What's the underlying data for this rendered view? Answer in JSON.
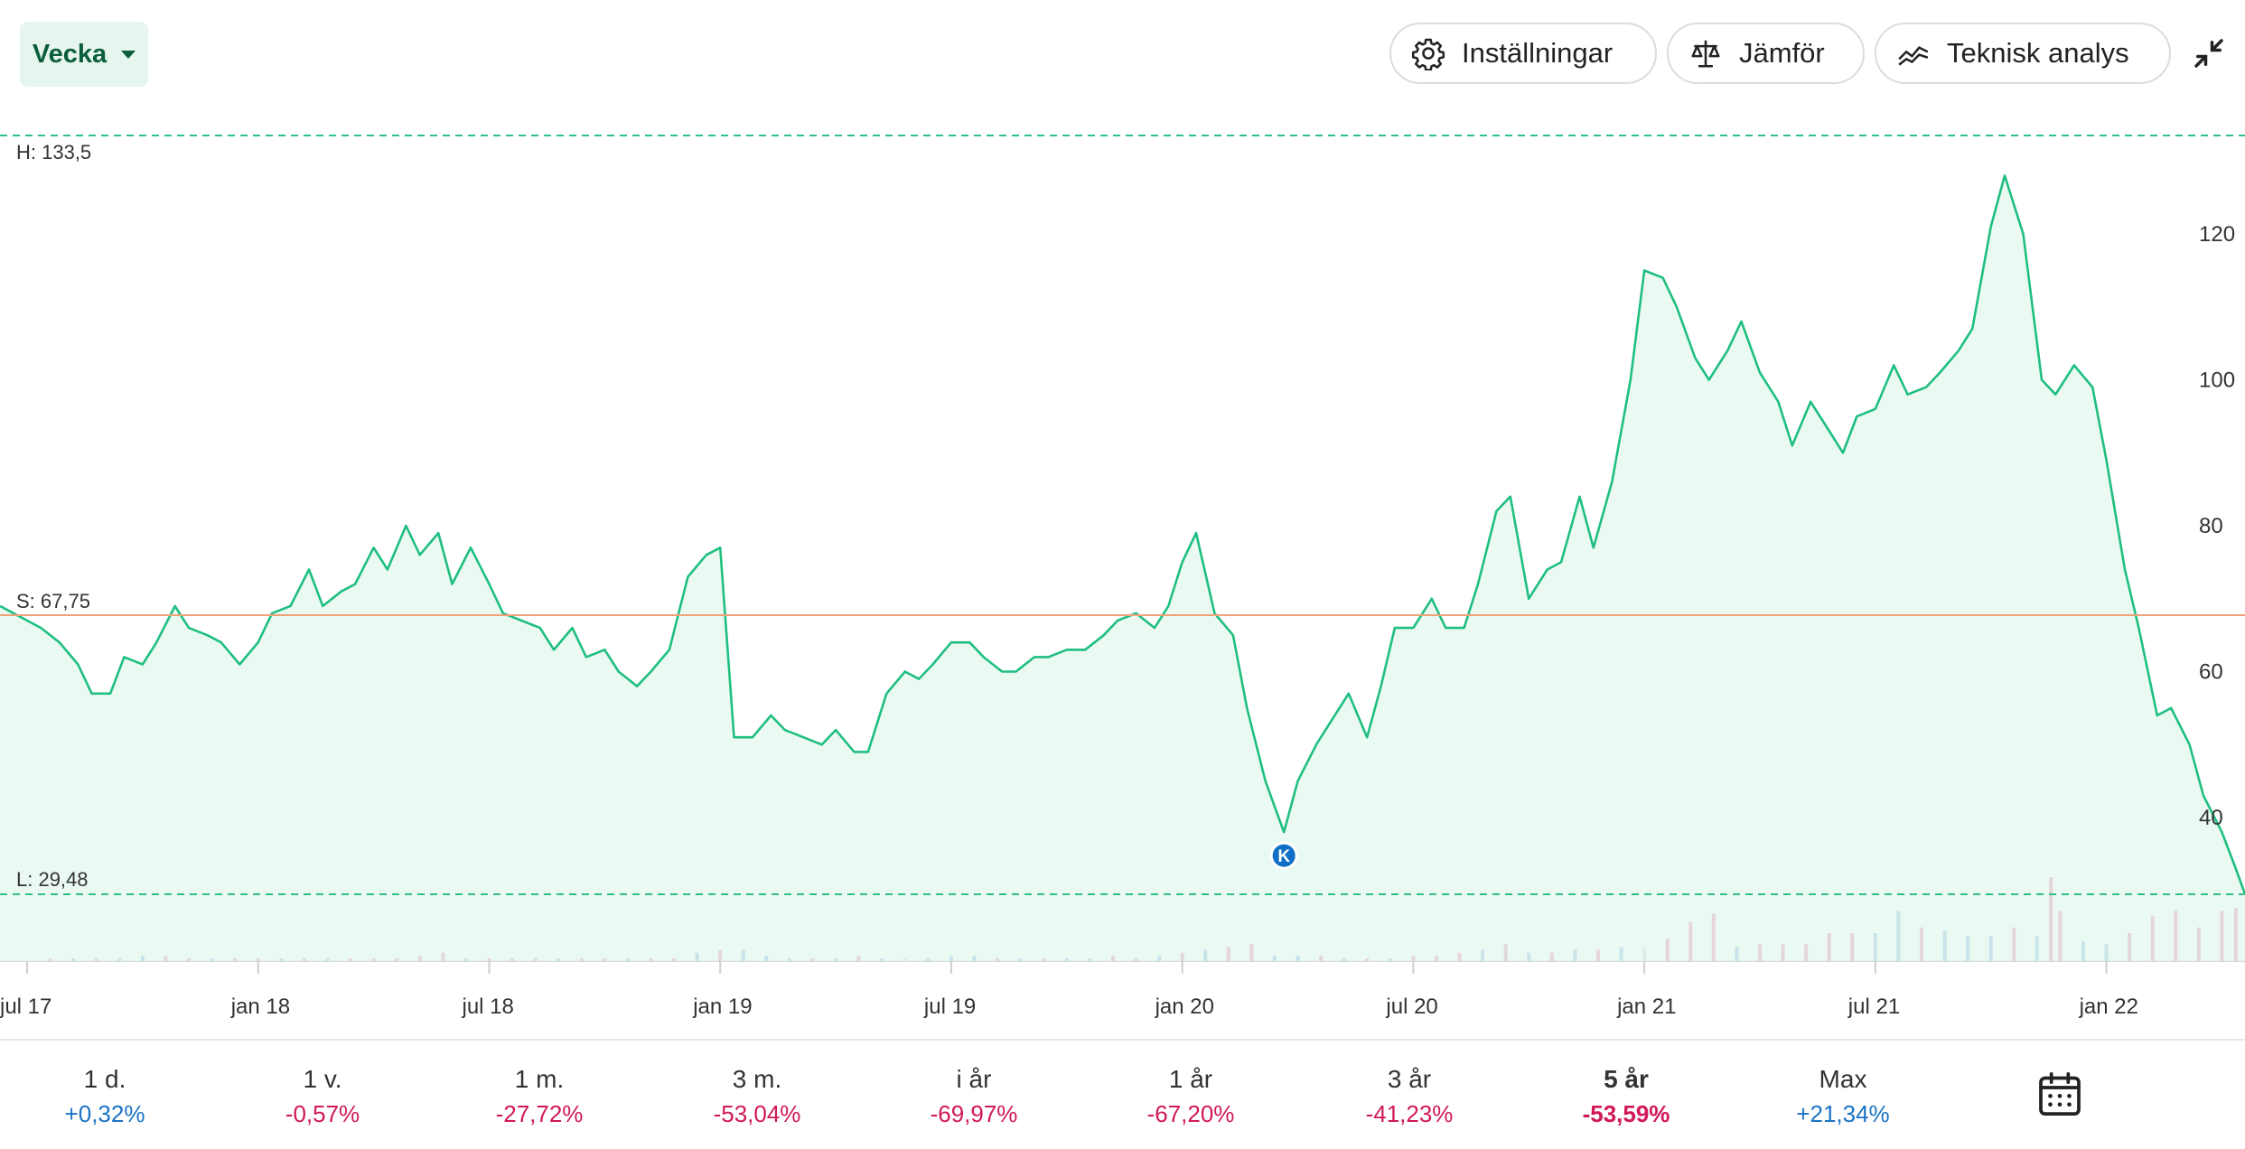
{
  "toolbar": {
    "period_label": "Vecka",
    "settings_label": "Inställningar",
    "compare_label": "Jämför",
    "technical_label": "Teknisk analys",
    "icons": [
      "chevron-down-icon",
      "gear-icon",
      "scale-icon",
      "trend-line-icon",
      "collapse-icon",
      "calendar-icon"
    ]
  },
  "chart_data": {
    "type": "line",
    "high_label": "H: 133,5",
    "start_label": "S: 67,75",
    "low_label": "L: 29,48",
    "high": 133.5,
    "start": 67.75,
    "low": 29.48,
    "ylim": [
      25,
      136
    ],
    "yticks": [
      "40",
      "60",
      "80",
      "100",
      "120"
    ],
    "ytick_values": [
      40,
      60,
      80,
      100,
      120
    ],
    "xlim": [
      2017.5,
      2022.3
    ],
    "xticks": [
      "jul 17",
      "jan 18",
      "jul 18",
      "jan 19",
      "jul 19",
      "jan 20",
      "jul 20",
      "jan 21",
      "jul 21",
      "jan 22"
    ],
    "xtick_values": [
      2017.5,
      2018.0,
      2018.5,
      2019.0,
      2019.5,
      2020.0,
      2020.5,
      2021.0,
      2021.5,
      2022.0
    ],
    "marker": {
      "label": "K",
      "x": 2020.22,
      "y": 38.0
    },
    "series": [
      {
        "points": [
          [
            2017.5,
            69
          ],
          [
            2017.53,
            66
          ],
          [
            2017.57,
            64
          ],
          [
            2017.61,
            61
          ],
          [
            2017.64,
            57
          ],
          [
            2017.68,
            57
          ],
          [
            2017.71,
            62
          ],
          [
            2017.75,
            61
          ],
          [
            2017.78,
            64
          ],
          [
            2017.82,
            69
          ],
          [
            2017.85,
            66
          ],
          [
            2017.89,
            65
          ],
          [
            2017.92,
            64
          ],
          [
            2017.96,
            61
          ],
          [
            2018.0,
            64
          ],
          [
            2018.03,
            68
          ],
          [
            2018.07,
            69
          ],
          [
            2018.11,
            74
          ],
          [
            2018.14,
            69
          ],
          [
            2018.18,
            71
          ],
          [
            2018.21,
            72
          ],
          [
            2018.25,
            77
          ],
          [
            2018.28,
            74
          ],
          [
            2018.32,
            80
          ],
          [
            2018.35,
            76
          ],
          [
            2018.39,
            79
          ],
          [
            2018.42,
            72
          ],
          [
            2018.46,
            77
          ],
          [
            2018.5,
            72
          ],
          [
            2018.53,
            68
          ],
          [
            2018.57,
            67
          ],
          [
            2018.61,
            66
          ],
          [
            2018.64,
            63
          ],
          [
            2018.68,
            66
          ],
          [
            2018.71,
            62
          ],
          [
            2018.75,
            63
          ],
          [
            2018.78,
            60
          ],
          [
            2018.82,
            58
          ],
          [
            2018.85,
            60
          ],
          [
            2018.89,
            63
          ],
          [
            2018.93,
            73
          ],
          [
            2018.97,
            76
          ],
          [
            2019.0,
            77
          ],
          [
            2019.03,
            51
          ],
          [
            2019.07,
            51
          ],
          [
            2019.11,
            54
          ],
          [
            2019.14,
            52
          ],
          [
            2019.18,
            51
          ],
          [
            2019.22,
            50
          ],
          [
            2019.25,
            52
          ],
          [
            2019.29,
            49
          ],
          [
            2019.32,
            49
          ],
          [
            2019.36,
            57
          ],
          [
            2019.4,
            60
          ],
          [
            2019.43,
            59
          ],
          [
            2019.46,
            61
          ],
          [
            2019.5,
            64
          ],
          [
            2019.54,
            64
          ],
          [
            2019.57,
            62
          ],
          [
            2019.61,
            60
          ],
          [
            2019.64,
            60
          ],
          [
            2019.68,
            62
          ],
          [
            2019.71,
            62
          ],
          [
            2019.75,
            63
          ],
          [
            2019.79,
            63
          ],
          [
            2019.83,
            65
          ],
          [
            2019.86,
            67
          ],
          [
            2019.9,
            68
          ],
          [
            2019.94,
            66
          ],
          [
            2019.97,
            69
          ],
          [
            2020.0,
            75
          ],
          [
            2020.03,
            79
          ],
          [
            2020.07,
            68
          ],
          [
            2020.11,
            65
          ],
          [
            2020.14,
            55
          ],
          [
            2020.18,
            45
          ],
          [
            2020.22,
            38
          ],
          [
            2020.25,
            45
          ],
          [
            2020.29,
            50
          ],
          [
            2020.32,
            53
          ],
          [
            2020.36,
            57
          ],
          [
            2020.4,
            51
          ],
          [
            2020.43,
            58
          ],
          [
            2020.46,
            66
          ],
          [
            2020.5,
            66
          ],
          [
            2020.54,
            70
          ],
          [
            2020.57,
            66
          ],
          [
            2020.61,
            66
          ],
          [
            2020.64,
            72
          ],
          [
            2020.68,
            82
          ],
          [
            2020.71,
            84
          ],
          [
            2020.75,
            70
          ],
          [
            2020.79,
            74
          ],
          [
            2020.82,
            75
          ],
          [
            2020.86,
            84
          ],
          [
            2020.89,
            77
          ],
          [
            2020.93,
            86
          ],
          [
            2020.97,
            100
          ],
          [
            2021.0,
            115
          ],
          [
            2021.04,
            114
          ],
          [
            2021.07,
            110
          ],
          [
            2021.11,
            103
          ],
          [
            2021.14,
            100
          ],
          [
            2021.18,
            104
          ],
          [
            2021.21,
            108
          ],
          [
            2021.25,
            101
          ],
          [
            2021.29,
            97
          ],
          [
            2021.32,
            91
          ],
          [
            2021.36,
            97
          ],
          [
            2021.39,
            94
          ],
          [
            2021.43,
            90
          ],
          [
            2021.46,
            95
          ],
          [
            2021.5,
            96
          ],
          [
            2021.54,
            102
          ],
          [
            2021.57,
            98
          ],
          [
            2021.61,
            99
          ],
          [
            2021.64,
            101
          ],
          [
            2021.68,
            104
          ],
          [
            2021.71,
            107
          ],
          [
            2021.75,
            121
          ],
          [
            2021.78,
            128
          ],
          [
            2021.82,
            120
          ],
          [
            2021.86,
            100
          ],
          [
            2021.89,
            98
          ],
          [
            2021.93,
            102
          ],
          [
            2021.97,
            99
          ],
          [
            2022.0,
            89
          ],
          [
            2022.04,
            74
          ],
          [
            2022.07,
            66
          ],
          [
            2022.11,
            54
          ],
          [
            2022.14,
            55
          ],
          [
            2022.18,
            50
          ],
          [
            2022.21,
            43
          ],
          [
            2022.25,
            38
          ],
          [
            2022.28,
            33
          ],
          [
            2022.3,
            29.5
          ]
        ]
      }
    ],
    "volume": {
      "colors": {
        "up": "#1a73c4",
        "down": "#d0185a",
        "flat": "#b0b0b0"
      },
      "values": [
        [
          2017.55,
          1,
          "down"
        ],
        [
          2017.6,
          1,
          "up"
        ],
        [
          2017.65,
          1,
          "down"
        ],
        [
          2017.7,
          1,
          "up"
        ],
        [
          2017.75,
          2,
          "up"
        ],
        [
          2017.8,
          2,
          "down"
        ],
        [
          2017.85,
          1,
          "down"
        ],
        [
          2017.9,
          1,
          "up"
        ],
        [
          2017.95,
          1,
          "down"
        ],
        [
          2018.0,
          1,
          "down"
        ],
        [
          2018.05,
          1,
          "up"
        ],
        [
          2018.1,
          1,
          "down"
        ],
        [
          2018.15,
          1,
          "up"
        ],
        [
          2018.2,
          1,
          "down"
        ],
        [
          2018.25,
          1,
          "down"
        ],
        [
          2018.3,
          1,
          "down"
        ],
        [
          2018.35,
          2,
          "down"
        ],
        [
          2018.4,
          3,
          "down"
        ],
        [
          2018.45,
          1,
          "up"
        ],
        [
          2018.5,
          1,
          "down"
        ],
        [
          2018.55,
          1,
          "down"
        ],
        [
          2018.6,
          1,
          "down"
        ],
        [
          2018.65,
          1,
          "up"
        ],
        [
          2018.7,
          1,
          "down"
        ],
        [
          2018.75,
          1,
          "down"
        ],
        [
          2018.8,
          1,
          "up"
        ],
        [
          2018.85,
          1,
          "down"
        ],
        [
          2018.9,
          1,
          "down"
        ],
        [
          2018.95,
          3,
          "up"
        ],
        [
          2019.0,
          4,
          "down"
        ],
        [
          2019.05,
          4,
          "up"
        ],
        [
          2019.1,
          2,
          "up"
        ],
        [
          2019.15,
          1,
          "up"
        ],
        [
          2019.2,
          1,
          "down"
        ],
        [
          2019.25,
          1,
          "up"
        ],
        [
          2019.3,
          2,
          "down"
        ],
        [
          2019.35,
          1,
          "up"
        ],
        [
          2019.4,
          1,
          "flat"
        ],
        [
          2019.45,
          1,
          "up"
        ],
        [
          2019.5,
          2,
          "up"
        ],
        [
          2019.55,
          2,
          "up"
        ],
        [
          2019.6,
          1,
          "down"
        ],
        [
          2019.65,
          1,
          "up"
        ],
        [
          2019.7,
          1,
          "down"
        ],
        [
          2019.75,
          1,
          "up"
        ],
        [
          2019.8,
          1,
          "up"
        ],
        [
          2019.85,
          2,
          "down"
        ],
        [
          2019.9,
          1,
          "down"
        ],
        [
          2019.95,
          2,
          "up"
        ],
        [
          2020.0,
          3,
          "down"
        ],
        [
          2020.05,
          4,
          "up"
        ],
        [
          2020.1,
          5,
          "down"
        ],
        [
          2020.15,
          6,
          "down"
        ],
        [
          2020.2,
          2,
          "up"
        ],
        [
          2020.25,
          2,
          "up"
        ],
        [
          2020.3,
          2,
          "down"
        ],
        [
          2020.35,
          1,
          "up"
        ],
        [
          2020.4,
          1,
          "down"
        ],
        [
          2020.45,
          1,
          "up"
        ],
        [
          2020.5,
          2,
          "down"
        ],
        [
          2020.55,
          2,
          "down"
        ],
        [
          2020.6,
          3,
          "down"
        ],
        [
          2020.65,
          4,
          "up"
        ],
        [
          2020.7,
          6,
          "down"
        ],
        [
          2020.75,
          3,
          "up"
        ],
        [
          2020.8,
          3,
          "down"
        ],
        [
          2020.85,
          4,
          "up"
        ],
        [
          2020.9,
          4,
          "down"
        ],
        [
          2020.95,
          5,
          "up"
        ],
        [
          2021.0,
          5,
          "flat"
        ],
        [
          2021.05,
          8,
          "down"
        ],
        [
          2021.1,
          14,
          "down"
        ],
        [
          2021.15,
          17,
          "down"
        ],
        [
          2021.2,
          5,
          "up"
        ],
        [
          2021.25,
          6,
          "down"
        ],
        [
          2021.3,
          6,
          "down"
        ],
        [
          2021.35,
          6,
          "down"
        ],
        [
          2021.4,
          10,
          "down"
        ],
        [
          2021.45,
          10,
          "down"
        ],
        [
          2021.5,
          10,
          "up"
        ],
        [
          2021.55,
          18,
          "up"
        ],
        [
          2021.6,
          12,
          "down"
        ],
        [
          2021.65,
          11,
          "up"
        ],
        [
          2021.7,
          9,
          "up"
        ],
        [
          2021.75,
          9,
          "up"
        ],
        [
          2021.8,
          12,
          "down"
        ],
        [
          2021.85,
          9,
          "up"
        ],
        [
          2021.9,
          18,
          "down"
        ],
        [
          2021.95,
          7,
          "up"
        ],
        [
          2022.0,
          6,
          "up"
        ],
        [
          2022.05,
          10,
          "down"
        ],
        [
          2022.1,
          16,
          "down"
        ],
        [
          2022.15,
          18,
          "down"
        ],
        [
          2022.2,
          12,
          "down"
        ],
        [
          2022.25,
          18,
          "down"
        ],
        [
          2022.28,
          19,
          "down"
        ]
      ],
      "peak": {
        "x": 2021.88,
        "value": 30,
        "dir": "down"
      }
    }
  },
  "stats": [
    {
      "label": "1 d.",
      "value": "+0,32%",
      "sign": "pos"
    },
    {
      "label": "1 v.",
      "value": "-0,57%",
      "sign": "neg"
    },
    {
      "label": "1 m.",
      "value": "-27,72%",
      "sign": "neg"
    },
    {
      "label": "3 m.",
      "value": "-53,04%",
      "sign": "neg"
    },
    {
      "label": "i år",
      "value": "-69,97%",
      "sign": "neg"
    },
    {
      "label": "1 år",
      "value": "-67,20%",
      "sign": "neg"
    },
    {
      "label": "3 år",
      "value": "-41,23%",
      "sign": "neg"
    },
    {
      "label": "5 år",
      "value": "-53,59%",
      "sign": "neg",
      "active": true
    },
    {
      "label": "Max",
      "value": "+21,34%",
      "sign": "pos"
    }
  ],
  "colors": {
    "line": "#1fbf80",
    "fill": "#e8f8f1",
    "reference": "#f0a27a",
    "dashed": "#2fc08a",
    "positive": "#1a73c4",
    "negative": "#d0185a",
    "accent_bg": "#e6f6ee",
    "accent_text": "#0b5e3d"
  }
}
